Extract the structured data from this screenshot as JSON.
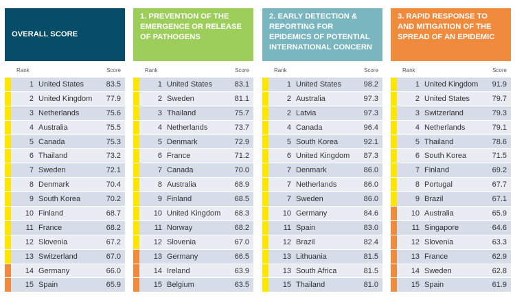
{
  "labels": {
    "rank": "Rank",
    "score": "Score"
  },
  "colors": {
    "overall": "#064d6a",
    "prevention": "#9dcd5a",
    "detection": "#7ab6c0",
    "response": "#f08a3c",
    "yellow_bar": "#ffe600",
    "orange_bar": "#f08a3c"
  },
  "panels": [
    {
      "title": "OVERALL SCORE",
      "rows": [
        {
          "rank": "1",
          "country": "United States",
          "score": "83.5",
          "band": "yellow"
        },
        {
          "rank": "2",
          "country": "United Kingdom",
          "score": "77.9",
          "band": "yellow"
        },
        {
          "rank": "3",
          "country": "Netherlands",
          "score": "75.6",
          "band": "yellow"
        },
        {
          "rank": "4",
          "country": "Australia",
          "score": "75.5",
          "band": "yellow"
        },
        {
          "rank": "5",
          "country": "Canada",
          "score": "75.3",
          "band": "yellow"
        },
        {
          "rank": "6",
          "country": "Thailand",
          "score": "73.2",
          "band": "yellow"
        },
        {
          "rank": "7",
          "country": "Sweden",
          "score": "72.1",
          "band": "yellow"
        },
        {
          "rank": "8",
          "country": "Denmark",
          "score": "70.4",
          "band": "yellow"
        },
        {
          "rank": "9",
          "country": "South Korea",
          "score": "70.2",
          "band": "yellow"
        },
        {
          "rank": "10",
          "country": "Finland",
          "score": "68.7",
          "band": "yellow"
        },
        {
          "rank": "11",
          "country": "France",
          "score": "68.2",
          "band": "yellow"
        },
        {
          "rank": "12",
          "country": "Slovenia",
          "score": "67.2",
          "band": "yellow"
        },
        {
          "rank": "13",
          "country": "Switzerland",
          "score": "67.0",
          "band": "yellow"
        },
        {
          "rank": "14",
          "country": "Germany",
          "score": "66.0",
          "band": "orange"
        },
        {
          "rank": "15",
          "country": "Spain",
          "score": "65.9",
          "band": "orange"
        }
      ]
    },
    {
      "title": "1. PREVENTION OF THE EMERGENCE OR RELEASE OF PATHOGENS",
      "rows": [
        {
          "rank": "1",
          "country": "United States",
          "score": "83.1",
          "band": "yellow"
        },
        {
          "rank": "2",
          "country": "Sweden",
          "score": "81.1",
          "band": "yellow"
        },
        {
          "rank": "3",
          "country": "Thailand",
          "score": "75.7",
          "band": "yellow"
        },
        {
          "rank": "4",
          "country": "Netherlands",
          "score": "73.7",
          "band": "yellow"
        },
        {
          "rank": "5",
          "country": "Denmark",
          "score": "72.9",
          "band": "yellow"
        },
        {
          "rank": "6",
          "country": "France",
          "score": "71.2",
          "band": "yellow"
        },
        {
          "rank": "7",
          "country": "Canada",
          "score": "70.0",
          "band": "yellow"
        },
        {
          "rank": "8",
          "country": "Australia",
          "score": "68.9",
          "band": "yellow"
        },
        {
          "rank": "9",
          "country": "Finland",
          "score": "68.5",
          "band": "yellow"
        },
        {
          "rank": "10",
          "country": "United Kingdom",
          "score": "68.3",
          "band": "yellow"
        },
        {
          "rank": "11",
          "country": "Norway",
          "score": "68.2",
          "band": "yellow"
        },
        {
          "rank": "12",
          "country": "Slovenia",
          "score": "67.0",
          "band": "yellow"
        },
        {
          "rank": "13",
          "country": "Germany",
          "score": "66.5",
          "band": "orange"
        },
        {
          "rank": "14",
          "country": "Ireland",
          "score": "63.9",
          "band": "orange"
        },
        {
          "rank": "15",
          "country": "Belgium",
          "score": "63.5",
          "band": "orange"
        }
      ]
    },
    {
      "title": "2. EARLY DETECTION & REPORTING FOR EPIDEMICS OF POTENTIAL INTERNATIONAL CONCERN",
      "rows": [
        {
          "rank": "1",
          "country": "United States",
          "score": "98.2",
          "band": "yellow"
        },
        {
          "rank": "2",
          "country": "Australia",
          "score": "97.3",
          "band": "yellow"
        },
        {
          "rank": "2",
          "country": "Latvia",
          "score": "97.3",
          "band": "yellow"
        },
        {
          "rank": "4",
          "country": "Canada",
          "score": "96.4",
          "band": "yellow"
        },
        {
          "rank": "5",
          "country": "South Korea",
          "score": "92.1",
          "band": "yellow"
        },
        {
          "rank": "6",
          "country": "United Kingdom",
          "score": "87.3",
          "band": "yellow"
        },
        {
          "rank": "7",
          "country": "Denmark",
          "score": "86.0",
          "band": "yellow"
        },
        {
          "rank": "7",
          "country": "Netherlands",
          "score": "86.0",
          "band": "yellow"
        },
        {
          "rank": "7",
          "country": "Sweden",
          "score": "86.0",
          "band": "yellow"
        },
        {
          "rank": "10",
          "country": "Germany",
          "score": "84.6",
          "band": "yellow"
        },
        {
          "rank": "11",
          "country": "Spain",
          "score": "83.0",
          "band": "yellow"
        },
        {
          "rank": "12",
          "country": "Brazil",
          "score": "82.4",
          "band": "yellow"
        },
        {
          "rank": "13",
          "country": "Lithuania",
          "score": "81.5",
          "band": "yellow"
        },
        {
          "rank": "13",
          "country": "South Africa",
          "score": "81.5",
          "band": "yellow"
        },
        {
          "rank": "15",
          "country": "Thailand",
          "score": "81.0",
          "band": "yellow"
        }
      ]
    },
    {
      "title": "3. RAPID RESPONSE TO AND MITIGATION OF THE SPREAD OF AN EPIDEMIC",
      "rows": [
        {
          "rank": "1",
          "country": "United Kingdom",
          "score": "91.9",
          "band": "yellow"
        },
        {
          "rank": "2",
          "country": "United States",
          "score": "79.7",
          "band": "yellow"
        },
        {
          "rank": "3",
          "country": "Switzerland",
          "score": "79.3",
          "band": "yellow"
        },
        {
          "rank": "4",
          "country": "Netherlands",
          "score": "79.1",
          "band": "yellow"
        },
        {
          "rank": "5",
          "country": "Thailand",
          "score": "78.6",
          "band": "yellow"
        },
        {
          "rank": "6",
          "country": "South Korea",
          "score": "71.5",
          "band": "yellow"
        },
        {
          "rank": "7",
          "country": "Finland",
          "score": "69.2",
          "band": "yellow"
        },
        {
          "rank": "8",
          "country": "Portugal",
          "score": "67.7",
          "band": "yellow"
        },
        {
          "rank": "9",
          "country": "Brazil",
          "score": "67.1",
          "band": "yellow"
        },
        {
          "rank": "10",
          "country": "Australia",
          "score": "65.9",
          "band": "orange"
        },
        {
          "rank": "11",
          "country": "Singapore",
          "score": "64.6",
          "band": "orange"
        },
        {
          "rank": "12",
          "country": "Slovenia",
          "score": "63.3",
          "band": "orange"
        },
        {
          "rank": "13",
          "country": "France",
          "score": "62.9",
          "band": "orange"
        },
        {
          "rank": "14",
          "country": "Sweden",
          "score": "62.8",
          "band": "orange"
        },
        {
          "rank": "15",
          "country": "Spain",
          "score": "61.9",
          "band": "orange"
        }
      ]
    }
  ]
}
